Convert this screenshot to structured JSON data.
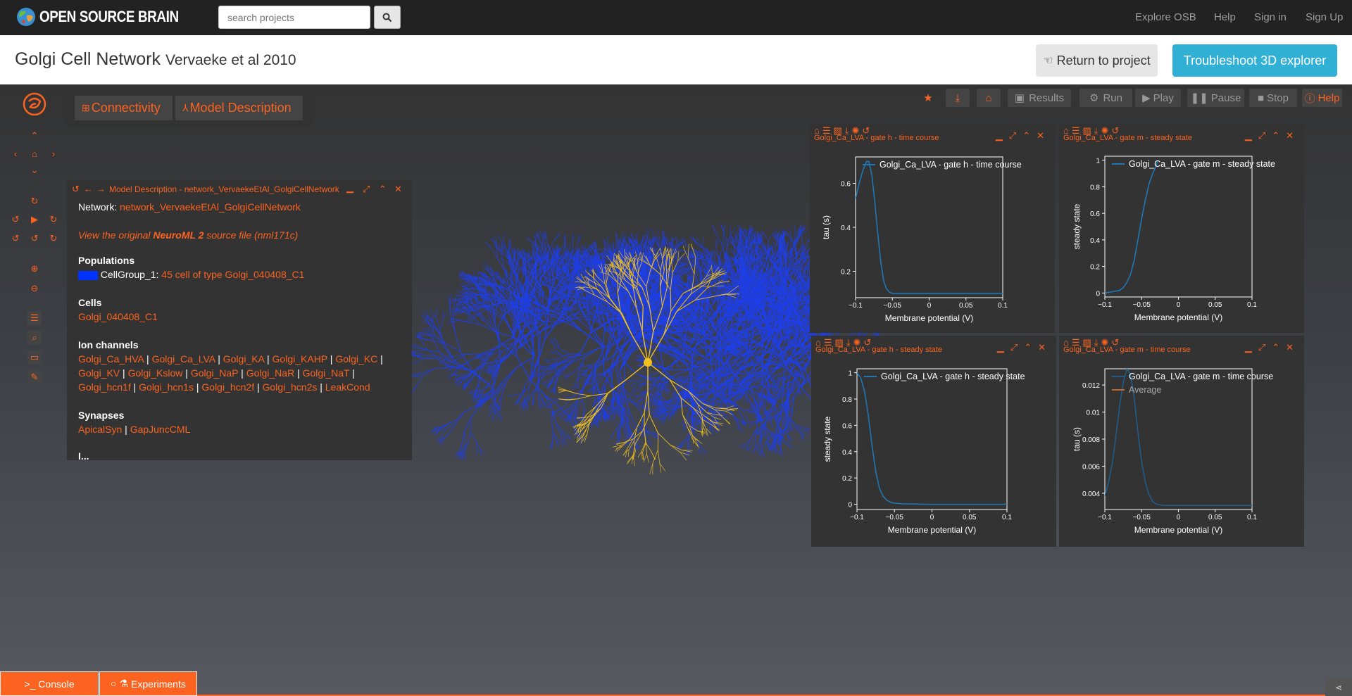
{
  "navbar": {
    "logo_text": "OPEN SOURCE BRAIN",
    "search_placeholder": "search projects",
    "links": [
      "Explore OSB",
      "Help",
      "Sign in",
      "Sign Up"
    ]
  },
  "header": {
    "title": "Golgi Cell Network",
    "subtitle": "Vervaeke et al 2010",
    "return_label": "Return to project",
    "troubleshoot_label": "Troubleshoot 3D explorer"
  },
  "tabs": {
    "connectivity": "Connectivity",
    "model_description": "Model Description"
  },
  "toolbar": {
    "results": "Results",
    "run": "Run",
    "play": "Play",
    "pause": "Pause",
    "stop": "Stop",
    "help": "Help"
  },
  "model_description": {
    "title": "Model Description - network_VervaekeEtAl_GolgiCellNetwork",
    "network_label": "Network:",
    "network_value": "network_VervaekeEtAl_GolgiCellNetwork",
    "source_prefix": "View the original ",
    "source_bold": "NeuroML 2",
    "source_suffix": " source file (nml171c)",
    "populations_heading": "Populations",
    "population_name": "CellGroup_1:",
    "population_value": "45 cell of type Golgi_040408_C1",
    "population_color": "#0033ff",
    "cells_heading": "Cells",
    "cell": "Golgi_040408_C1",
    "ion_channels_heading": "Ion channels",
    "ion_channels": [
      "Golgi_Ca_HVA",
      "Golgi_Ca_LVA",
      "Golgi_KA",
      "Golgi_KAHP",
      "Golgi_KC",
      "Golgi_KV",
      "Golgi_Kslow",
      "Golgi_NaP",
      "Golgi_NaR",
      "Golgi_NaT",
      "Golgi_hcn1f",
      "Golgi_hcn1s",
      "Golgi_hcn2f",
      "Golgi_hcn2s",
      "LeakCond"
    ],
    "synapses_heading": "Synapses",
    "synapses": [
      "ApicalSyn",
      "GapJuncCML"
    ],
    "cut_off_text": "I..."
  },
  "plots": [
    {
      "title": "Golgi_Ca_LVA - gate h - time course",
      "legend": [
        "Golgi_Ca_LVA - gate h - time course"
      ],
      "xlabel": "Membrane potential (V)",
      "ylabel": "tau (s)"
    },
    {
      "title": "Golgi_Ca_LVA - gate m - steady state",
      "legend": [
        "Golgi_Ca_LVA - gate m - steady state"
      ],
      "xlabel": "Membrane potential (V)",
      "ylabel": "steady state"
    },
    {
      "title": "Golgi_Ca_LVA - gate h - steady state",
      "legend": [
        "Golgi_Ca_LVA - gate h - steady state"
      ],
      "xlabel": "Membrane potential (V)",
      "ylabel": "steady state"
    },
    {
      "title": "Golgi_Ca_LVA - gate m - time course",
      "legend": [
        "Golgi_Ca_LVA - gate m - time course",
        "Average"
      ],
      "xlabel": "Membrane potential (V)",
      "ylabel": "tau (s)"
    }
  ],
  "chart_data": [
    {
      "type": "line",
      "title": "Golgi_Ca_LVA - gate h - time course",
      "xlabel": "Membrane potential (V)",
      "ylabel": "tau (s)",
      "xlim": [
        -0.1,
        0.1
      ],
      "ylim": [
        0.08,
        0.72
      ],
      "xticks": [
        "-0.1",
        "-0.05",
        "0",
        "0.05",
        "0.1"
      ],
      "yticks": [
        "0.2",
        "0.4",
        "0.6"
      ],
      "series": [
        {
          "name": "Golgi_Ca_LVA - gate h - time course",
          "color": "#1f77b4",
          "x": [
            -0.1,
            -0.095,
            -0.09,
            -0.085,
            -0.082,
            -0.078,
            -0.074,
            -0.07,
            -0.066,
            -0.062,
            -0.058,
            -0.054,
            -0.05,
            -0.04,
            -0.02,
            0,
            0.05,
            0.1
          ],
          "y": [
            0.53,
            0.6,
            0.66,
            0.7,
            0.7,
            0.64,
            0.52,
            0.38,
            0.25,
            0.16,
            0.12,
            0.105,
            0.1,
            0.1,
            0.1,
            0.1,
            0.1,
            0.1
          ]
        }
      ]
    },
    {
      "type": "line",
      "title": "Golgi_Ca_LVA - gate m - steady state",
      "xlabel": "Membrane potential (V)",
      "ylabel": "steady state",
      "xlim": [
        -0.1,
        0.1
      ],
      "ylim": [
        -0.03,
        1.03
      ],
      "xticks": [
        "-0.1",
        "-0.05",
        "0",
        "0.05",
        "0.1"
      ],
      "yticks": [
        "0",
        "0.2",
        "0.4",
        "0.6",
        "0.8",
        "1"
      ],
      "series": [
        {
          "name": "Golgi_Ca_LVA - gate m - steady state",
          "color": "#1f77b4",
          "x": [
            -0.1,
            -0.09,
            -0.08,
            -0.075,
            -0.07,
            -0.065,
            -0.06,
            -0.055,
            -0.05,
            -0.045,
            -0.04,
            -0.035,
            -0.03,
            -0.028
          ],
          "y": [
            0.0,
            0.01,
            0.02,
            0.04,
            0.08,
            0.14,
            0.25,
            0.4,
            0.56,
            0.7,
            0.82,
            0.9,
            0.96,
            1.0
          ]
        }
      ]
    },
    {
      "type": "line",
      "title": "Golgi_Ca_LVA - gate h - steady state",
      "xlabel": "Membrane potential (V)",
      "ylabel": "steady state",
      "xlim": [
        -0.1,
        0.1
      ],
      "ylim": [
        -0.04,
        1.03
      ],
      "xticks": [
        "-0.1",
        "-0.05",
        "0",
        "0.05",
        "0.1"
      ],
      "yticks": [
        "0",
        "0.2",
        "0.4",
        "0.6",
        "0.8",
        "1"
      ],
      "series": [
        {
          "name": "Golgi_Ca_LVA - gate h - steady state",
          "color": "#1f77b4",
          "x": [
            -0.1,
            -0.095,
            -0.09,
            -0.085,
            -0.08,
            -0.075,
            -0.07,
            -0.065,
            -0.06,
            -0.055,
            -0.05,
            -0.04,
            0,
            0.05,
            0.1
          ],
          "y": [
            1.0,
            0.96,
            0.86,
            0.68,
            0.45,
            0.25,
            0.12,
            0.06,
            0.03,
            0.015,
            0.008,
            0.003,
            0.0,
            0.0,
            0.0
          ]
        }
      ]
    },
    {
      "type": "line",
      "title": "Golgi_Ca_LVA - gate m - time course",
      "xlabel": "Membrane potential (V)",
      "ylabel": "tau (s)",
      "xlim": [
        -0.1,
        0.1
      ],
      "ylim": [
        0.0028,
        0.0132
      ],
      "xticks": [
        "-0.1",
        "-0.05",
        "0",
        "0.05",
        "0.1"
      ],
      "yticks": [
        "0.004",
        "0.006",
        "0.008",
        "0.01",
        "0.012"
      ],
      "series": [
        {
          "name": "Golgi_Ca_LVA - gate m - time course",
          "color": "#1f5c8a",
          "x": [
            -0.1,
            -0.095,
            -0.09,
            -0.085,
            -0.08,
            -0.075,
            -0.07,
            -0.065,
            -0.06,
            -0.055,
            -0.05,
            -0.045,
            -0.04,
            -0.035,
            -0.03,
            -0.02,
            0,
            0.05,
            0.1
          ],
          "y": [
            0.0038,
            0.0048,
            0.0062,
            0.0082,
            0.0104,
            0.0122,
            0.0132,
            0.0128,
            0.011,
            0.0085,
            0.0063,
            0.0048,
            0.0039,
            0.0034,
            0.0032,
            0.0031,
            0.0031,
            0.0031,
            0.0031
          ]
        },
        {
          "name": "Average",
          "color": "#c86428",
          "x": [],
          "y": []
        }
      ]
    }
  ]
}
